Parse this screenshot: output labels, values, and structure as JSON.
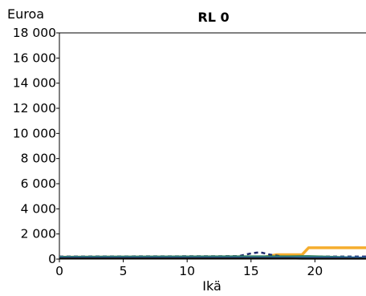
{
  "chart_data": {
    "type": "line",
    "title": "RL 0",
    "ylabel": "Euroa",
    "xlabel": "Ikä",
    "xlim": [
      0,
      24
    ],
    "ylim": [
      0,
      18000
    ],
    "x_ticks": [
      0,
      5,
      10,
      15,
      20
    ],
    "x_tick_labels": [
      "0",
      "5",
      "10",
      "15",
      "20"
    ],
    "y_ticks": [
      0,
      2000,
      4000,
      6000,
      8000,
      10000,
      12000,
      14000,
      16000,
      18000
    ],
    "y_tick_labels": [
      "0",
      "2 000",
      "4 000",
      "6 000",
      "8 000",
      "10 000",
      "12 000",
      "14 000",
      "16 000",
      "18 000"
    ],
    "grid": false,
    "series": [
      {
        "color": "#f5ad2e",
        "dash": "solid",
        "x": [
          0,
          16,
          17,
          19,
          19.5,
          24
        ],
        "y": [
          150,
          150,
          350,
          350,
          900,
          900
        ]
      },
      {
        "color": "#1f2a6e",
        "dash": "dashed",
        "x": [
          0,
          14,
          15,
          15.7,
          16.5,
          17.5,
          24
        ],
        "y": [
          200,
          230,
          450,
          550,
          350,
          200,
          200
        ]
      },
      {
        "color": "#2e7d5b",
        "dash": "solid",
        "x": [
          0,
          14,
          18,
          19.5,
          24
        ],
        "y": [
          180,
          220,
          220,
          230,
          100
        ]
      },
      {
        "color": "#2f6fb5",
        "dash": "solid",
        "x": [
          0,
          24
        ],
        "y": [
          120,
          120
        ]
      },
      {
        "color": "#111111",
        "dash": "solid",
        "x": [
          0,
          18,
          19,
          24
        ],
        "y": [
          60,
          60,
          40,
          40
        ]
      }
    ]
  }
}
